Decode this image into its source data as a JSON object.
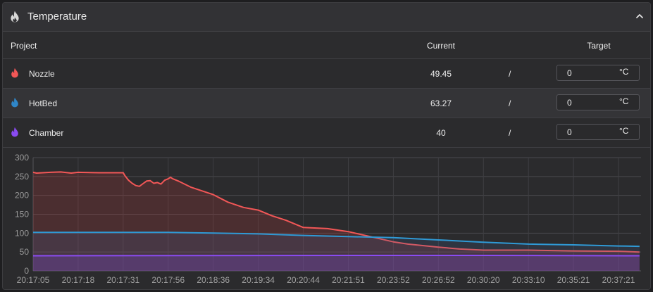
{
  "header": {
    "title": "Temperature"
  },
  "table": {
    "columns": {
      "project": "Project",
      "current": "Current",
      "target": "Target"
    },
    "rows": [
      {
        "name": "Nozzle",
        "current": "49.45",
        "separator": "/",
        "target": "0",
        "unit": "°C",
        "color": "#f25757"
      },
      {
        "name": "HotBed",
        "current": "63.27",
        "separator": "/",
        "target": "0",
        "unit": "°C",
        "color": "#2f86c8"
      },
      {
        "name": "Chamber",
        "current": "40",
        "separator": "/",
        "target": "0",
        "unit": "°C",
        "color": "#8a4bf2"
      }
    ]
  },
  "chart_data": {
    "type": "area",
    "x": [
      "20:17:05",
      "20:17:18",
      "20:17:31",
      "20:17:56",
      "20:18:36",
      "20:19:34",
      "20:20:44",
      "20:21:51",
      "20:23:52",
      "20:26:52",
      "20:30:20",
      "20:33:10",
      "20:35:21",
      "20:37:21"
    ],
    "x_tick_labels": [
      "20:17:05",
      "20:17:18",
      "20:17:31",
      "20:17:56",
      "20:18:36",
      "20:19:34",
      "20:20:44",
      "20:21:51",
      "20:23:52",
      "20:26:52",
      "20:30:20",
      "20:33:10",
      "20:35:21",
      "20:37:21"
    ],
    "y_ticks": [
      0,
      50,
      100,
      150,
      200,
      250,
      300
    ],
    "ylim": [
      0,
      300
    ],
    "grid": true,
    "series": [
      {
        "key": "nozzle",
        "color": "#f25757",
        "points": [
          [
            "20:17:05",
            261
          ],
          [
            "20:17:06",
            259
          ],
          [
            "20:17:10",
            261
          ],
          [
            "20:17:13",
            262
          ],
          [
            "20:17:16",
            259
          ],
          [
            "20:17:18",
            261
          ],
          [
            "20:17:24",
            260
          ],
          [
            "20:17:31",
            260
          ],
          [
            "20:17:32",
            252
          ],
          [
            "20:17:34",
            240
          ],
          [
            "20:17:36",
            232
          ],
          [
            "20:17:38",
            226
          ],
          [
            "20:17:40",
            224
          ],
          [
            "20:17:42",
            231
          ],
          [
            "20:17:44",
            238
          ],
          [
            "20:17:46",
            239
          ],
          [
            "20:17:48",
            232
          ],
          [
            "20:17:50",
            234
          ],
          [
            "20:17:52",
            230
          ],
          [
            "20:17:54",
            240
          ],
          [
            "20:17:56",
            244
          ],
          [
            "20:17:58",
            248
          ],
          [
            "20:18:00",
            244
          ],
          [
            "20:18:05",
            238
          ],
          [
            "20:18:16",
            222
          ],
          [
            "20:18:36",
            202
          ],
          [
            "20:18:55",
            182
          ],
          [
            "20:19:15",
            168
          ],
          [
            "20:19:34",
            161
          ],
          [
            "20:19:55",
            146
          ],
          [
            "20:20:17",
            134
          ],
          [
            "20:20:44",
            115
          ],
          [
            "20:21:20",
            112
          ],
          [
            "20:21:51",
            104
          ],
          [
            "20:23:52",
            77
          ],
          [
            "20:24:50",
            71
          ],
          [
            "20:26:52",
            63
          ],
          [
            "20:28:30",
            58
          ],
          [
            "20:30:20",
            55
          ],
          [
            "20:31:40",
            55
          ],
          [
            "20:33:10",
            55
          ],
          [
            "20:35:21",
            53
          ],
          [
            "20:37:21",
            52
          ],
          [
            "20:38:17",
            50
          ]
        ]
      },
      {
        "key": "hotbed",
        "color": "#2f9ad6",
        "points": [
          [
            "20:17:05",
            102
          ],
          [
            "20:17:56",
            102
          ],
          [
            "20:18:36",
            100
          ],
          [
            "20:19:34",
            98
          ],
          [
            "20:20:44",
            94
          ],
          [
            "20:21:51",
            91
          ],
          [
            "20:23:52",
            88
          ],
          [
            "20:26:52",
            82
          ],
          [
            "20:30:20",
            76
          ],
          [
            "20:33:10",
            71
          ],
          [
            "20:35:21",
            69
          ],
          [
            "20:37:21",
            66
          ],
          [
            "20:38:17",
            65
          ]
        ]
      },
      {
        "key": "chamber",
        "color": "#8a4bf2",
        "points": [
          [
            "20:17:05",
            40
          ],
          [
            "20:21:51",
            41
          ],
          [
            "20:26:52",
            41
          ],
          [
            "20:30:20",
            41
          ],
          [
            "20:38:17",
            40
          ]
        ]
      }
    ]
  }
}
